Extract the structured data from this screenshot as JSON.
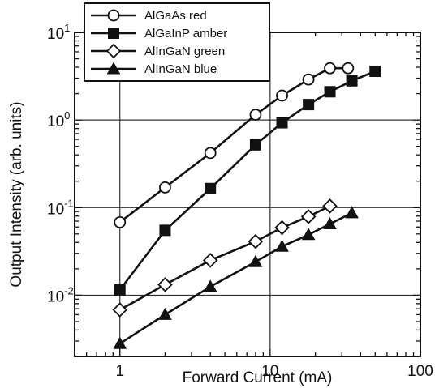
{
  "chart_data": {
    "type": "line",
    "xlabel": "Forward Current (mA)",
    "ylabel": "Output Intensity (arb. units)",
    "x_scale": "log",
    "y_scale": "log",
    "xlim": [
      0.5,
      100
    ],
    "ylim": [
      0.002,
      10
    ],
    "x_ticks": [
      {
        "value": 1,
        "label": "1"
      },
      {
        "value": 10,
        "label": "10"
      },
      {
        "value": 100,
        "label": "100"
      }
    ],
    "y_ticks": [
      {
        "value": 0.01,
        "base": "10",
        "exp": "-2"
      },
      {
        "value": 0.1,
        "base": "10",
        "exp": "-1"
      },
      {
        "value": 1,
        "base": "10",
        "exp": "0"
      },
      {
        "value": 10,
        "base": "10",
        "exp": "1"
      }
    ],
    "grid": true,
    "legend_position": "top-left",
    "series": [
      {
        "name": "AlGaAs red",
        "marker": "circle-open",
        "x": [
          1,
          2,
          4,
          8,
          12,
          18,
          25,
          33
        ],
        "y": [
          0.068,
          0.17,
          0.42,
          1.15,
          1.9,
          2.9,
          3.9,
          3.9
        ]
      },
      {
        "name": "AlGaInP amber",
        "marker": "square-filled",
        "x": [
          1,
          2,
          4,
          8,
          12,
          18,
          25,
          35,
          50
        ],
        "y": [
          0.0115,
          0.055,
          0.165,
          0.52,
          0.93,
          1.5,
          2.1,
          2.8,
          3.6
        ]
      },
      {
        "name": "AlInGaN green",
        "marker": "diamond-open",
        "x": [
          1,
          2,
          4,
          8,
          12,
          18,
          25
        ],
        "y": [
          0.0068,
          0.0132,
          0.025,
          0.041,
          0.059,
          0.079,
          0.104
        ]
      },
      {
        "name": "AlInGaN blue",
        "marker": "triangle-filled",
        "x": [
          1,
          2,
          4,
          8,
          12,
          18,
          25,
          35
        ],
        "y": [
          0.0028,
          0.006,
          0.0125,
          0.024,
          0.036,
          0.049,
          0.065,
          0.087
        ]
      }
    ]
  }
}
